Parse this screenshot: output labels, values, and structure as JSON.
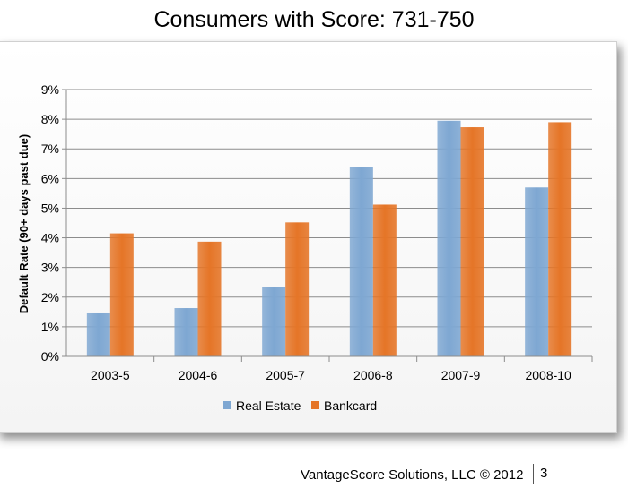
{
  "slide": {
    "title": "Consumers with Score: 731-750",
    "footer": "VantageScore Solutions, LLC © 2012",
    "page_number": "3"
  },
  "chart_data": {
    "type": "bar",
    "title": "",
    "xlabel": "",
    "ylabel": "Default Rate (90+ days past due)",
    "categories": [
      "2003-5",
      "2004-6",
      "2005-7",
      "2006-8",
      "2007-9",
      "2008-10"
    ],
    "series": [
      {
        "name": "Real Estate",
        "color": "#7ea7d2",
        "values": [
          1.45,
          1.63,
          2.35,
          6.4,
          7.95,
          5.7
        ]
      },
      {
        "name": "Bankcard",
        "color": "#e57527",
        "values": [
          4.15,
          3.87,
          4.52,
          5.12,
          7.73,
          7.9
        ]
      }
    ],
    "ylim": [
      0,
      9
    ],
    "yticks": [
      0,
      1,
      2,
      3,
      4,
      5,
      6,
      7,
      8,
      9
    ],
    "ytick_labels": [
      "0%",
      "1%",
      "2%",
      "3%",
      "4%",
      "5%",
      "6%",
      "7%",
      "8%",
      "9%"
    ],
    "grid": true,
    "legend": "bottom"
  }
}
